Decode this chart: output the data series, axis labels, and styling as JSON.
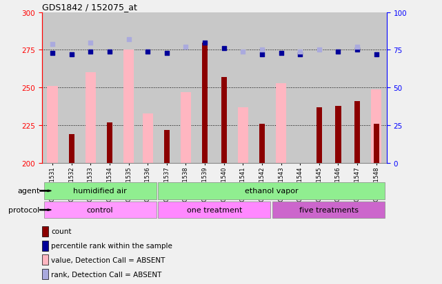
{
  "title": "GDS1842 / 152075_at",
  "samples": [
    "GSM101531",
    "GSM101532",
    "GSM101533",
    "GSM101534",
    "GSM101535",
    "GSM101536",
    "GSM101537",
    "GSM101538",
    "GSM101539",
    "GSM101540",
    "GSM101541",
    "GSM101542",
    "GSM101543",
    "GSM101544",
    "GSM101545",
    "GSM101546",
    "GSM101547",
    "GSM101548"
  ],
  "count_values": [
    200,
    219,
    200,
    227,
    200,
    200,
    222,
    200,
    280,
    257,
    200,
    226,
    200,
    200,
    237,
    238,
    241,
    226
  ],
  "value_absent": [
    251,
    200,
    260,
    200,
    275,
    233,
    200,
    247,
    200,
    200,
    237,
    200,
    253,
    200,
    200,
    200,
    200,
    249
  ],
  "rank_present": [
    273,
    272,
    274,
    274,
    999,
    274,
    273,
    999,
    280,
    276,
    999,
    272,
    273,
    272,
    999,
    274,
    275,
    272
  ],
  "rank_absent": [
    279,
    999,
    280,
    999,
    282,
    999,
    999,
    277,
    999,
    999,
    274,
    275,
    999,
    274,
    275,
    999,
    277,
    999
  ],
  "ylim_left": [
    200,
    300
  ],
  "ylim_right": [
    0,
    100
  ],
  "yticks_left": [
    200,
    225,
    250,
    275,
    300
  ],
  "yticks_right": [
    0,
    25,
    50,
    75,
    100
  ],
  "dotted_lines": [
    225,
    250,
    275
  ],
  "color_count": "#8B0000",
  "color_value_absent": "#FFB6C1",
  "color_rank_present": "#000099",
  "color_rank_absent": "#AAAADD",
  "bg_plot": "#C8C8C8",
  "bg_figure": "#F0F0F0",
  "agent_labels": [
    "humidified air",
    "ethanol vapor"
  ],
  "agent_ranges": [
    [
      0,
      6
    ],
    [
      6,
      18
    ]
  ],
  "agent_color": "#90EE90",
  "proto_labels": [
    "control",
    "one treatment",
    "five treatments"
  ],
  "proto_ranges": [
    [
      0,
      6
    ],
    [
      6,
      12
    ],
    [
      12,
      18
    ]
  ],
  "proto_colors": [
    "#FF99FF",
    "#FF88FF",
    "#CC66CC"
  ],
  "legend_items": [
    {
      "color": "#8B0000",
      "label": "count"
    },
    {
      "color": "#000099",
      "label": "percentile rank within the sample"
    },
    {
      "color": "#FFB6C1",
      "label": "value, Detection Call = ABSENT"
    },
    {
      "color": "#AAAADD",
      "label": "rank, Detection Call = ABSENT"
    }
  ]
}
